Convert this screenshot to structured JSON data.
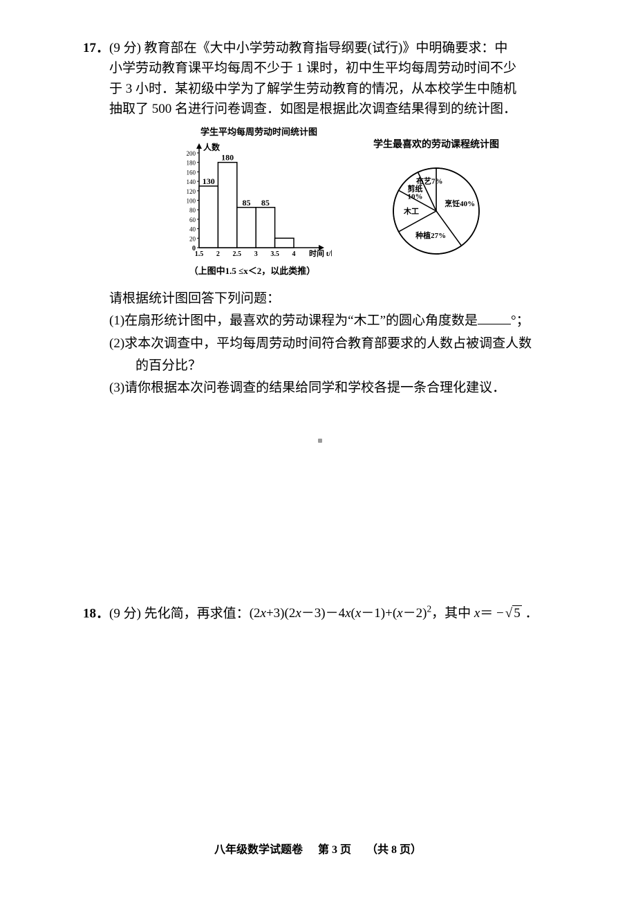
{
  "q17": {
    "number": "17．",
    "points": "(9 分) ",
    "text_l1": "教育部在《大中小学劳动教育指导纲要(试行)》中明确要求：中",
    "text_l2": "小学劳动教育课平均每周不少于 1 课时，初中生平均每周劳动时间不少",
    "text_l3": "于 3 小时．某初级中学为了解学生劳动教育的情况，从本校学生中随机",
    "text_l4": "抽取了 500 名进行问卷调查．如图是根据此次调查结果得到的统计图．",
    "hist_title": "学生平均每周劳动时间统计图",
    "hist_caption": "（上图中1.5 ≤x＜2，以此类推）",
    "pie_title": "学生最喜欢的劳动课程统计图",
    "intro": "请根据统计图回答下列问题：",
    "sub1_a": "(1)在扇形统计图中，最喜欢的劳动课程为“木工”的圆心角度数是",
    "sub1_b": "°；",
    "sub2_a": "(2)求本次调查中，平均每周劳动时间符合教育部要求的人数占被调查人数",
    "sub2_b": "的百分比？",
    "sub3": "(3)请你根据本次问卷调查的结果给同学和学校各提一条合理化建议．"
  },
  "histogram": {
    "y_label": "人数",
    "x_label": "时间 t/时",
    "y_max": 200,
    "y_ticks": [
      0,
      20,
      40,
      60,
      80,
      100,
      120,
      140,
      160,
      180,
      200
    ],
    "x_ticks": [
      "1.5",
      "2",
      "2.5",
      "3",
      "3.5",
      "4"
    ],
    "bars": [
      {
        "label": "130",
        "value": 130
      },
      {
        "label": "180",
        "value": 180
      },
      {
        "label": "85",
        "value": 85
      },
      {
        "label": "85",
        "value": 85
      },
      {
        "label": "",
        "value": 20
      }
    ],
    "axis_color": "#000000",
    "bar_fill": "#ffffff",
    "bar_stroke": "#000000"
  },
  "pie": {
    "slices": [
      {
        "name": "烹饪40%",
        "pct": 40
      },
      {
        "name": "种植27%",
        "pct": 27
      },
      {
        "name": "木工",
        "pct": 16
      },
      {
        "name": "剪纸\n10%",
        "pct": 10
      },
      {
        "name": "布艺7%",
        "pct": 7
      }
    ],
    "stroke": "#000000",
    "fill": "#ffffff"
  },
  "q18": {
    "number": "18．",
    "points": "(9 分) ",
    "lead": "先化简，再求值：",
    "expr": "(2x+3)(2x−3)−4x(x−1)+(x−2)²，其中 x = −√5 ．"
  },
  "footer": {
    "a": "八年级数学试题卷",
    "b": "第 3 页",
    "c": "（共 8 页）"
  }
}
